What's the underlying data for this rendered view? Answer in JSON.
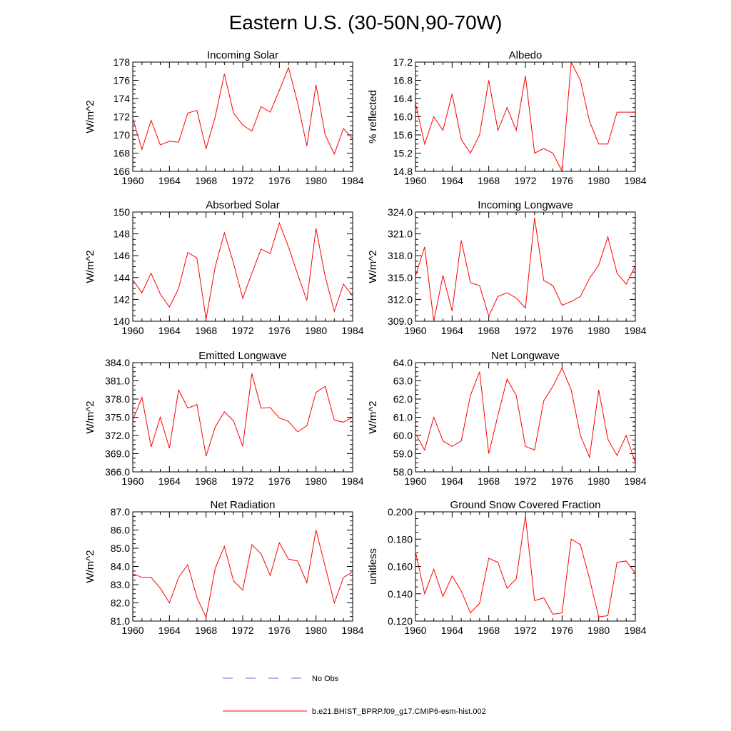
{
  "title": "Eastern U.S. (30-50N,90-70W)",
  "colors": {
    "series": "#ff0000",
    "obs": "#6b6bd6",
    "axis": "#000000"
  },
  "legend": {
    "obs_label": "No Obs",
    "model_label": "b.e21.BHIST_BPRP.f09_g17.CMIP6-esm-hist.002"
  },
  "chart_data": [
    {
      "type": "line",
      "title": "Incoming Solar",
      "ylabel": "W/m^2",
      "xlim": [
        1960,
        1984
      ],
      "ylim": [
        166,
        178
      ],
      "x_ticks": [
        "1960",
        "1964",
        "1968",
        "1972",
        "1976",
        "1980",
        "1984"
      ],
      "y_ticks": [
        "166",
        "168",
        "170",
        "172",
        "174",
        "176",
        "178"
      ],
      "x": [
        1960,
        1961,
        1962,
        1963,
        1964,
        1965,
        1966,
        1967,
        1968,
        1969,
        1970,
        1971,
        1972,
        1973,
        1974,
        1975,
        1976,
        1977,
        1978,
        1979,
        1980,
        1981,
        1982,
        1983,
        1984
      ],
      "series": [
        {
          "name": "b.e21.BHIST_BPRP.f09_g17.CMIP6-esm-hist.002",
          "values": [
            171.8,
            168.4,
            171.6,
            168.9,
            169.3,
            169.2,
            172.4,
            172.7,
            168.5,
            172.0,
            176.7,
            172.4,
            171.1,
            170.4,
            173.1,
            172.5,
            174.9,
            177.4,
            173.5,
            168.8,
            175.5,
            170.0,
            167.9,
            170.7,
            169.6
          ]
        }
      ]
    },
    {
      "type": "line",
      "title": "Albedo",
      "ylabel": "% reflected",
      "xlim": [
        1960,
        1984
      ],
      "ylim": [
        14.8,
        17.2
      ],
      "x_ticks": [
        "1960",
        "1964",
        "1968",
        "1972",
        "1976",
        "1980",
        "1984"
      ],
      "y_ticks": [
        "14.8",
        "15.2",
        "15.6",
        "16.0",
        "16.4",
        "16.8",
        "17.2"
      ],
      "x": [
        1960,
        1961,
        1962,
        1963,
        1964,
        1965,
        1966,
        1967,
        1968,
        1969,
        1970,
        1971,
        1972,
        1973,
        1974,
        1975,
        1976,
        1977,
        1978,
        1979,
        1980,
        1981,
        1982,
        1983,
        1984
      ],
      "series": [
        {
          "name": "b.e21.BHIST_BPRP.f09_g17.CMIP6-esm-hist.002",
          "values": [
            16.3,
            15.4,
            16.0,
            15.7,
            16.5,
            15.5,
            15.2,
            15.6,
            16.8,
            15.7,
            16.2,
            15.7,
            16.9,
            15.2,
            15.3,
            15.2,
            14.8,
            17.2,
            16.8,
            15.9,
            15.4,
            15.4,
            16.1,
            16.1,
            16.1
          ]
        }
      ]
    },
    {
      "type": "line",
      "title": "Absorbed Solar",
      "ylabel": "W/m^2",
      "xlim": [
        1960,
        1984
      ],
      "ylim": [
        140,
        150
      ],
      "x_ticks": [
        "1960",
        "1964",
        "1968",
        "1972",
        "1976",
        "1980",
        "1984"
      ],
      "y_ticks": [
        "140",
        "142",
        "144",
        "146",
        "148",
        "150"
      ],
      "x": [
        1960,
        1961,
        1962,
        1963,
        1964,
        1965,
        1966,
        1967,
        1968,
        1969,
        1970,
        1971,
        1972,
        1973,
        1974,
        1975,
        1976,
        1977,
        1978,
        1979,
        1980,
        1981,
        1982,
        1983,
        1984
      ],
      "series": [
        {
          "name": "b.e21.BHIST_BPRP.f09_g17.CMIP6-esm-hist.002",
          "values": [
            143.8,
            142.6,
            144.4,
            142.5,
            141.3,
            143.0,
            146.3,
            145.8,
            140.2,
            145.0,
            148.1,
            145.3,
            142.1,
            144.4,
            146.6,
            146.2,
            149.0,
            146.8,
            144.3,
            141.9,
            148.5,
            144.1,
            140.9,
            143.4,
            142.3
          ]
        }
      ]
    },
    {
      "type": "line",
      "title": "Incoming Longwave",
      "ylabel": "W/m^2",
      "xlim": [
        1960,
        1984
      ],
      "ylim": [
        309.0,
        324.0
      ],
      "x_ticks": [
        "1960",
        "1964",
        "1968",
        "1972",
        "1976",
        "1980",
        "1984"
      ],
      "y_ticks": [
        "309.0",
        "312.0",
        "315.0",
        "318.0",
        "321.0",
        "324.0"
      ],
      "x": [
        1960,
        1961,
        1962,
        1963,
        1964,
        1965,
        1966,
        1967,
        1968,
        1969,
        1970,
        1971,
        1972,
        1973,
        1974,
        1975,
        1976,
        1977,
        1978,
        1979,
        1980,
        1981,
        1982,
        1983,
        1984
      ],
      "series": [
        {
          "name": "b.e21.BHIST_BPRP.f09_g17.CMIP6-esm-hist.002",
          "values": [
            315.2,
            319.2,
            309.0,
            315.3,
            310.4,
            320.1,
            314.3,
            313.9,
            309.7,
            312.4,
            312.9,
            312.2,
            310.8,
            323.2,
            314.6,
            313.9,
            311.2,
            311.7,
            312.4,
            314.9,
            316.7,
            320.6,
            315.6,
            314.1,
            316.6
          ]
        }
      ]
    },
    {
      "type": "line",
      "title": "Emitted Longwave",
      "ylabel": "W/m^2",
      "xlim": [
        1960,
        1984
      ],
      "ylim": [
        366.0,
        384.0
      ],
      "x_ticks": [
        "1960",
        "1964",
        "1968",
        "1972",
        "1976",
        "1980",
        "1984"
      ],
      "y_ticks": [
        "366.0",
        "369.0",
        "372.0",
        "375.0",
        "378.0",
        "381.0",
        "384.0"
      ],
      "x": [
        1960,
        1961,
        1962,
        1963,
        1964,
        1965,
        1966,
        1967,
        1968,
        1969,
        1970,
        1971,
        1972,
        1973,
        1974,
        1975,
        1976,
        1977,
        1978,
        1979,
        1980,
        1981,
        1982,
        1983,
        1984
      ],
      "series": [
        {
          "name": "b.e21.BHIST_BPRP.f09_g17.CMIP6-esm-hist.002",
          "values": [
            374.5,
            378.3,
            370.1,
            375.0,
            369.9,
            379.5,
            376.5,
            377.1,
            368.6,
            373.4,
            375.9,
            374.4,
            370.2,
            382.2,
            376.5,
            376.6,
            374.9,
            374.3,
            372.6,
            373.6,
            379.1,
            380.1,
            374.5,
            374.2,
            375.0
          ]
        }
      ]
    },
    {
      "type": "line",
      "title": "Net Longwave",
      "ylabel": "W/m^2",
      "xlim": [
        1960,
        1984
      ],
      "ylim": [
        58.0,
        64.0
      ],
      "x_ticks": [
        "1960",
        "1964",
        "1968",
        "1972",
        "1976",
        "1980",
        "1984"
      ],
      "y_ticks": [
        "58.0",
        "59.0",
        "60.0",
        "61.0",
        "62.0",
        "63.0",
        "64.0"
      ],
      "x": [
        1960,
        1961,
        1962,
        1963,
        1964,
        1965,
        1966,
        1967,
        1968,
        1969,
        1970,
        1971,
        1972,
        1973,
        1974,
        1975,
        1976,
        1977,
        1978,
        1979,
        1980,
        1981,
        1982,
        1983,
        1984
      ],
      "series": [
        {
          "name": "b.e21.BHIST_BPRP.f09_g17.CMIP6-esm-hist.002",
          "values": [
            60.1,
            59.2,
            61.0,
            59.7,
            59.4,
            59.7,
            62.2,
            63.5,
            59.0,
            61.1,
            63.1,
            62.2,
            59.4,
            59.2,
            61.9,
            62.7,
            63.7,
            62.5,
            60.0,
            58.8,
            62.5,
            59.8,
            58.9,
            60.0,
            58.5
          ]
        }
      ]
    },
    {
      "type": "line",
      "title": "Net Radiation",
      "ylabel": "W/m^2",
      "xlim": [
        1960,
        1984
      ],
      "ylim": [
        81.0,
        87.0
      ],
      "x_ticks": [
        "1960",
        "1964",
        "1968",
        "1972",
        "1976",
        "1980",
        "1984"
      ],
      "y_ticks": [
        "81.0",
        "82.0",
        "83.0",
        "84.0",
        "85.0",
        "86.0",
        "87.0"
      ],
      "x": [
        1960,
        1961,
        1962,
        1963,
        1964,
        1965,
        1966,
        1967,
        1968,
        1969,
        1970,
        1971,
        1972,
        1973,
        1974,
        1975,
        1976,
        1977,
        1978,
        1979,
        1980,
        1981,
        1982,
        1983,
        1984
      ],
      "series": [
        {
          "name": "b.e21.BHIST_BPRP.f09_g17.CMIP6-esm-hist.002",
          "values": [
            83.6,
            83.4,
            83.4,
            82.8,
            82.0,
            83.4,
            84.1,
            82.3,
            81.2,
            83.9,
            85.1,
            83.2,
            82.7,
            85.2,
            84.7,
            83.5,
            85.3,
            84.4,
            84.3,
            83.1,
            86.0,
            84.0,
            82.0,
            83.4,
            83.7
          ]
        }
      ]
    },
    {
      "type": "line",
      "title": "Ground Snow Covered Fraction",
      "ylabel": "unitless",
      "xlim": [
        1960,
        1984
      ],
      "ylim": [
        0.12,
        0.2
      ],
      "x_ticks": [
        "1960",
        "1964",
        "1968",
        "1972",
        "1976",
        "1980",
        "1984"
      ],
      "y_ticks": [
        "0.120",
        "0.140",
        "0.160",
        "0.180",
        "0.200"
      ],
      "x": [
        1960,
        1961,
        1962,
        1963,
        1964,
        1965,
        1966,
        1967,
        1968,
        1969,
        1970,
        1971,
        1972,
        1973,
        1974,
        1975,
        1976,
        1977,
        1978,
        1979,
        1980,
        1981,
        1982,
        1983,
        1984
      ],
      "series": [
        {
          "name": "b.e21.BHIST_BPRP.f09_g17.CMIP6-esm-hist.002",
          "values": [
            0.171,
            0.14,
            0.158,
            0.138,
            0.153,
            0.142,
            0.126,
            0.133,
            0.166,
            0.163,
            0.144,
            0.151,
            0.197,
            0.135,
            0.137,
            0.125,
            0.126,
            0.18,
            0.176,
            0.151,
            0.123,
            0.124,
            0.163,
            0.164,
            0.155
          ]
        }
      ]
    }
  ]
}
